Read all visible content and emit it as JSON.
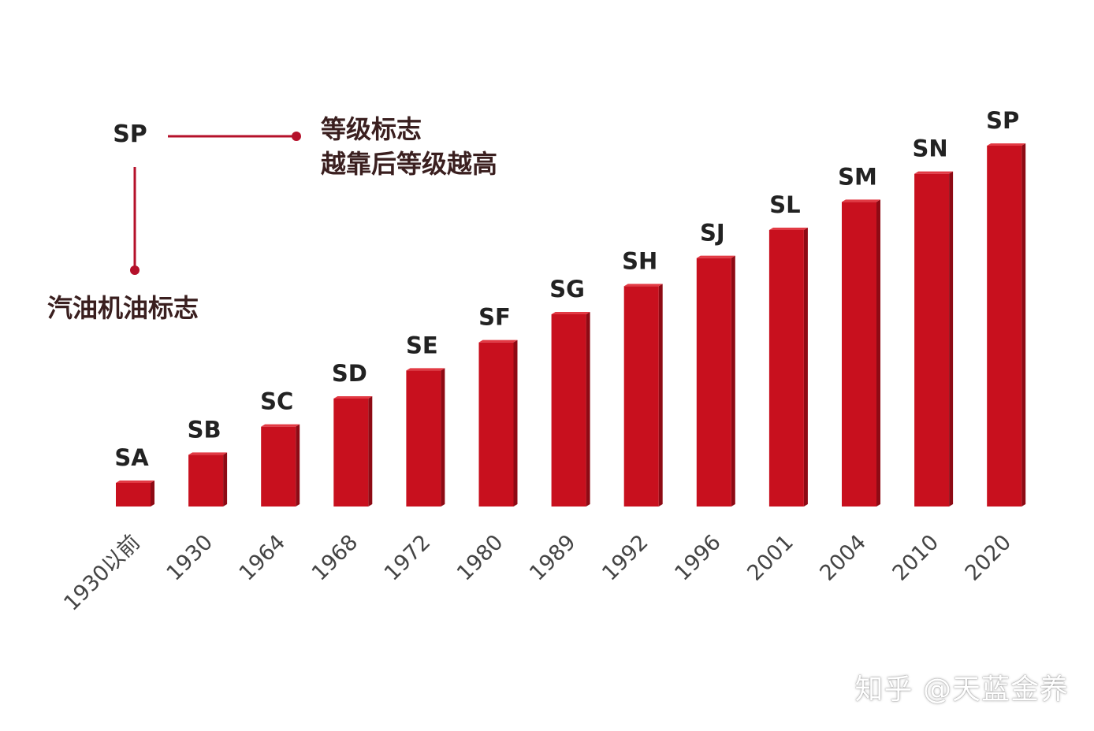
{
  "chart_data": {
    "type": "bar",
    "title": "",
    "xlabel": "",
    "ylabel": "",
    "grid": false,
    "categories": [
      "1930以前",
      "1930",
      "1964",
      "1968",
      "1972",
      "1980",
      "1989",
      "1992",
      "1996",
      "2001",
      "2004",
      "2010",
      "2020"
    ],
    "bar_labels": [
      "SA",
      "SB",
      "SC",
      "SD",
      "SE",
      "SF",
      "SG",
      "SH",
      "SJ",
      "SL",
      "SM",
      "SN",
      "SP"
    ],
    "values": [
      1,
      2,
      3,
      4,
      5,
      6,
      7,
      8,
      9,
      10,
      11,
      12,
      13
    ],
    "ylim": [
      0,
      13
    ],
    "bar_color": "#c8101e",
    "bar_side_color": "#8e0a14",
    "bar_top_color": "#e23a44"
  },
  "legend": {
    "code": "SP",
    "grade_text_line1": "等级标志",
    "grade_text_line2": "越靠后等级越高",
    "gasoline_text": "汽油机油标志",
    "line_color": "#b5102a"
  },
  "watermark": {
    "text": "知乎 @天蓝金养"
  }
}
